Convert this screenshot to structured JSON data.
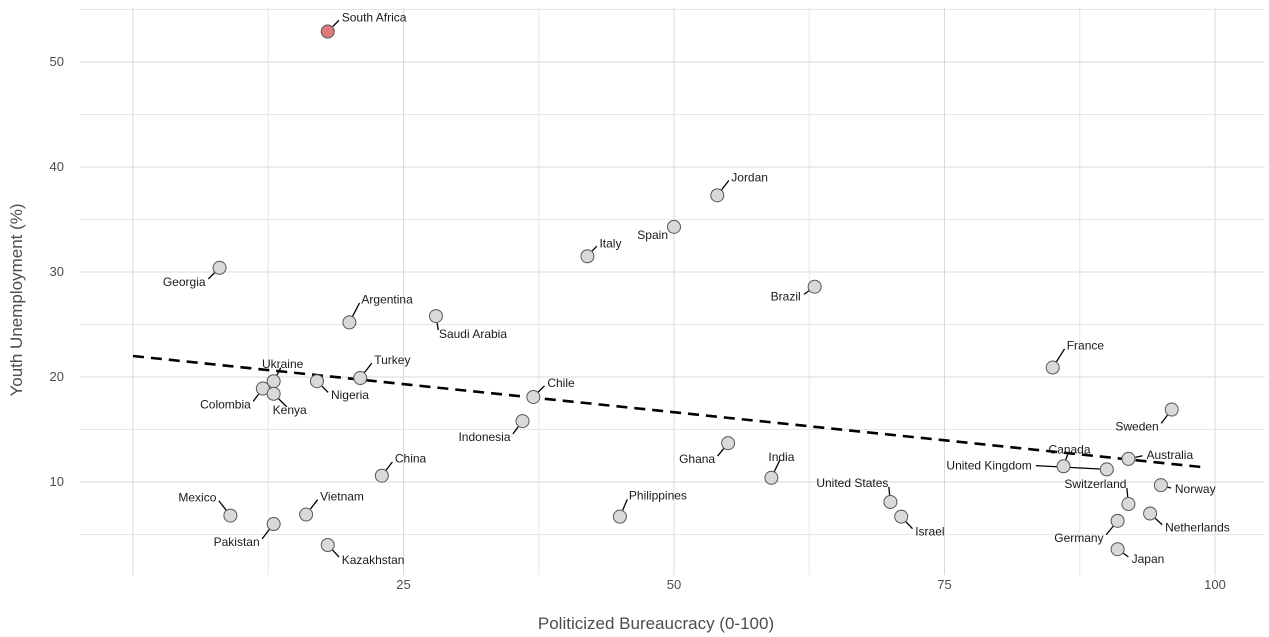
{
  "chart_data": {
    "type": "scatter",
    "xlabel": "Politicized Bureaucracy (0-100)",
    "ylabel": "Youth Unemployment (%)",
    "xlim": [
      0,
      102
    ],
    "ylim": [
      1.5,
      55.5
    ],
    "x_ticks": [
      25,
      50,
      75,
      100
    ],
    "y_ticks": [
      10,
      20,
      30,
      40,
      50
    ],
    "grid": true,
    "highlight_color": "#e07b7b",
    "point_color": "#d9d9d9",
    "trend_line": {
      "style": "dashed",
      "x": [
        0,
        99
      ],
      "y": [
        22.0,
        11.4
      ]
    },
    "points": [
      {
        "label": "South Africa",
        "x": 18,
        "y": 52.9,
        "highlight": true
      },
      {
        "label": "Jordan",
        "x": 54,
        "y": 37.3
      },
      {
        "label": "Spain",
        "x": 50,
        "y": 34.3
      },
      {
        "label": "Italy",
        "x": 42,
        "y": 31.5
      },
      {
        "label": "Georgia",
        "x": 8,
        "y": 30.4
      },
      {
        "label": "Brazil",
        "x": 63,
        "y": 28.6
      },
      {
        "label": "Argentina",
        "x": 20,
        "y": 25.2
      },
      {
        "label": "Saudi Arabia",
        "x": 28,
        "y": 25.8
      },
      {
        "label": "France",
        "x": 85,
        "y": 20.9
      },
      {
        "label": "Ukraine",
        "x": 13,
        "y": 19.6
      },
      {
        "label": "Turkey",
        "x": 21,
        "y": 19.9
      },
      {
        "label": "Colombia",
        "x": 12,
        "y": 18.9
      },
      {
        "label": "Kenya",
        "x": 13,
        "y": 18.4
      },
      {
        "label": "Nigeria",
        "x": 17,
        "y": 19.6
      },
      {
        "label": "Chile",
        "x": 37,
        "y": 18.1
      },
      {
        "label": "Sweden",
        "x": 96,
        "y": 16.9
      },
      {
        "label": "Indonesia",
        "x": 36,
        "y": 15.8
      },
      {
        "label": "Ghana",
        "x": 55,
        "y": 13.7
      },
      {
        "label": "Canada",
        "x": 86,
        "y": 11.5
      },
      {
        "label": "Australia",
        "x": 92,
        "y": 12.2
      },
      {
        "label": "United Kingdom",
        "x": 90,
        "y": 11.2
      },
      {
        "label": "China",
        "x": 23,
        "y": 10.6
      },
      {
        "label": "India",
        "x": 59,
        "y": 10.4
      },
      {
        "label": "United States",
        "x": 70,
        "y": 8.1
      },
      {
        "label": "Switzerland",
        "x": 92,
        "y": 7.9
      },
      {
        "label": "Norway",
        "x": 95,
        "y": 9.7
      },
      {
        "label": "Mexico",
        "x": 9,
        "y": 6.8
      },
      {
        "label": "Vietnam",
        "x": 16,
        "y": 6.9
      },
      {
        "label": "Philippines",
        "x": 45,
        "y": 6.7
      },
      {
        "label": "Israel",
        "x": 71,
        "y": 6.7
      },
      {
        "label": "Netherlands",
        "x": 94,
        "y": 7.0
      },
      {
        "label": "Pakistan",
        "x": 13,
        "y": 6.0
      },
      {
        "label": "Germany",
        "x": 91,
        "y": 6.3
      },
      {
        "label": "Kazakhstan",
        "x": 18,
        "y": 4.0
      },
      {
        "label": "Japan",
        "x": 91,
        "y": 3.6
      }
    ]
  }
}
